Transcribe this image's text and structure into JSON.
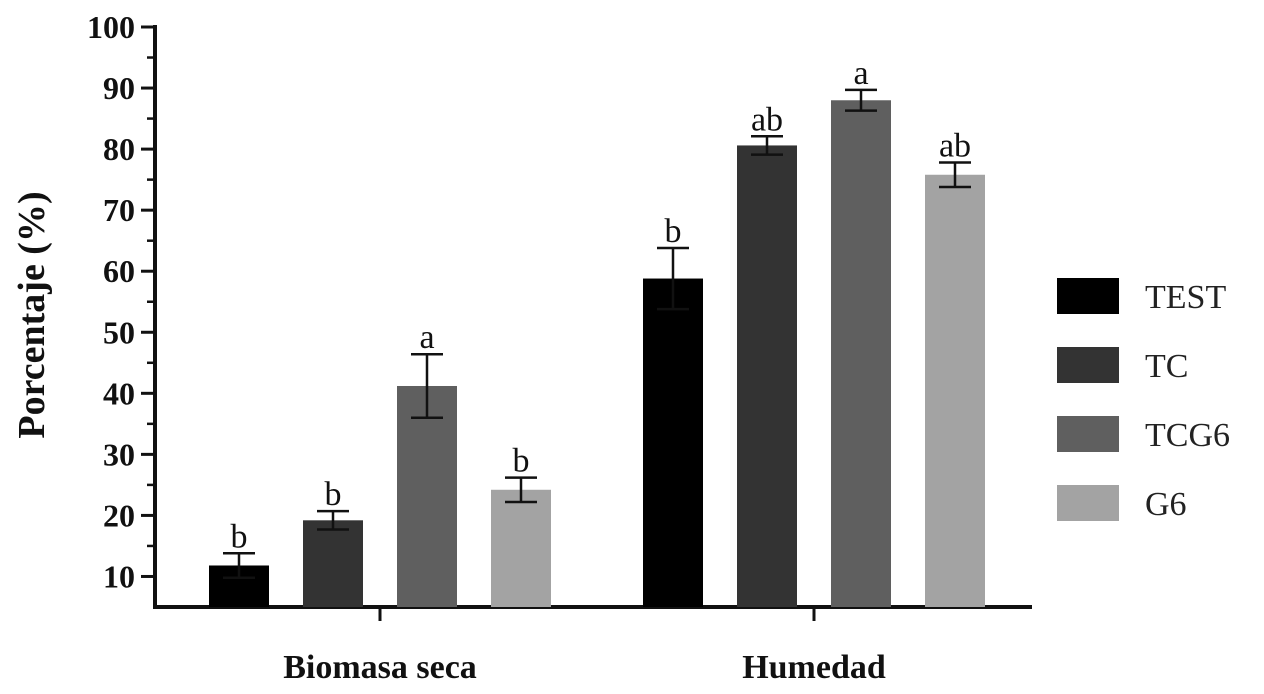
{
  "chart_data": {
    "type": "bar",
    "ylabel": "Porcentaje (%)",
    "xlabel": "",
    "ylim": [
      5,
      100
    ],
    "yticks": [
      10,
      20,
      30,
      40,
      50,
      60,
      70,
      80,
      90,
      100
    ],
    "categories": [
      "Biomasa seca",
      "Humedad"
    ],
    "legend_position": "right",
    "grid": false,
    "series": [
      {
        "name": "TEST",
        "color": "#000000",
        "values": [
          11.8,
          58.8
        ],
        "errors": [
          2.0,
          5.0
        ],
        "labels": [
          "b",
          "b"
        ]
      },
      {
        "name": "TC",
        "color": "#333333",
        "values": [
          19.2,
          80.6
        ],
        "errors": [
          1.5,
          1.5
        ],
        "labels": [
          "b",
          "ab"
        ]
      },
      {
        "name": "TCG6",
        "color": "#5f5f5f",
        "values": [
          41.2,
          88.0
        ],
        "errors": [
          5.2,
          1.7
        ],
        "labels": [
          "a",
          "a"
        ]
      },
      {
        "name": "G6",
        "color": "#a3a3a3",
        "values": [
          24.2,
          75.8
        ],
        "errors": [
          2.0,
          2.0
        ],
        "labels": [
          "b",
          "ab"
        ]
      }
    ]
  }
}
